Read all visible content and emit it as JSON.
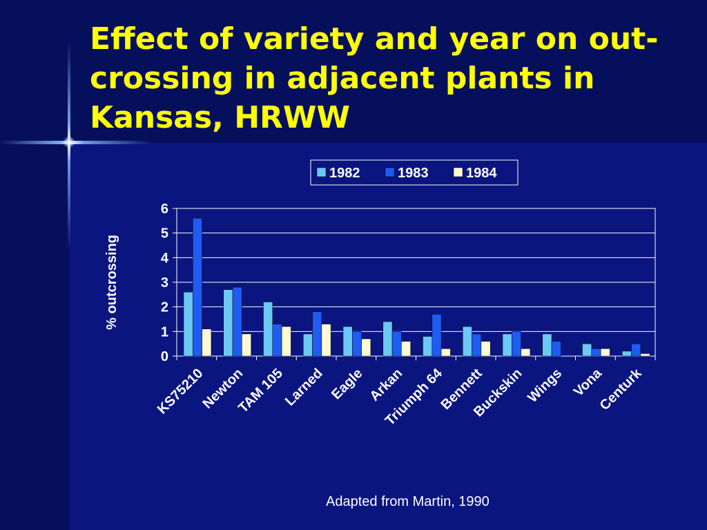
{
  "slide": {
    "title": "Effect of variety and year on out-crossing in adjacent plants in Kansas, HRWW",
    "source": "Adapted from Martin, 1990"
  },
  "colors": {
    "background": "#0a1580",
    "title": "#ffff00",
    "series": [
      "#6cc8f5",
      "#1f5cf2",
      "#fffbd6"
    ]
  },
  "chart_data": {
    "type": "bar",
    "ylabel": "% outcrossing",
    "xlabel": "",
    "ylim": [
      0,
      6
    ],
    "yticks": [
      0,
      1,
      2,
      3,
      4,
      5,
      6
    ],
    "grid": "horizontal",
    "legend_position": "top-right",
    "categories": [
      "KS75210",
      "Newton",
      "TAM 105",
      "Larned",
      "Eagle",
      "Arkan",
      "Triumph 64",
      "Bennett",
      "Buckskin",
      "Wings",
      "Vona",
      "Centurk"
    ],
    "series": [
      {
        "name": "1982",
        "values": [
          2.6,
          2.7,
          2.2,
          0.9,
          1.2,
          1.4,
          0.8,
          1.2,
          0.9,
          0.9,
          0.5,
          0.2
        ]
      },
      {
        "name": "1983",
        "values": [
          5.6,
          2.8,
          1.3,
          1.8,
          1.0,
          1.0,
          1.7,
          0.9,
          1.0,
          0.6,
          0.3,
          0.5
        ]
      },
      {
        "name": "1984",
        "values": [
          1.1,
          0.9,
          1.2,
          1.3,
          0.7,
          0.6,
          0.3,
          0.6,
          0.3,
          0.0,
          0.3,
          0.1
        ]
      }
    ]
  }
}
